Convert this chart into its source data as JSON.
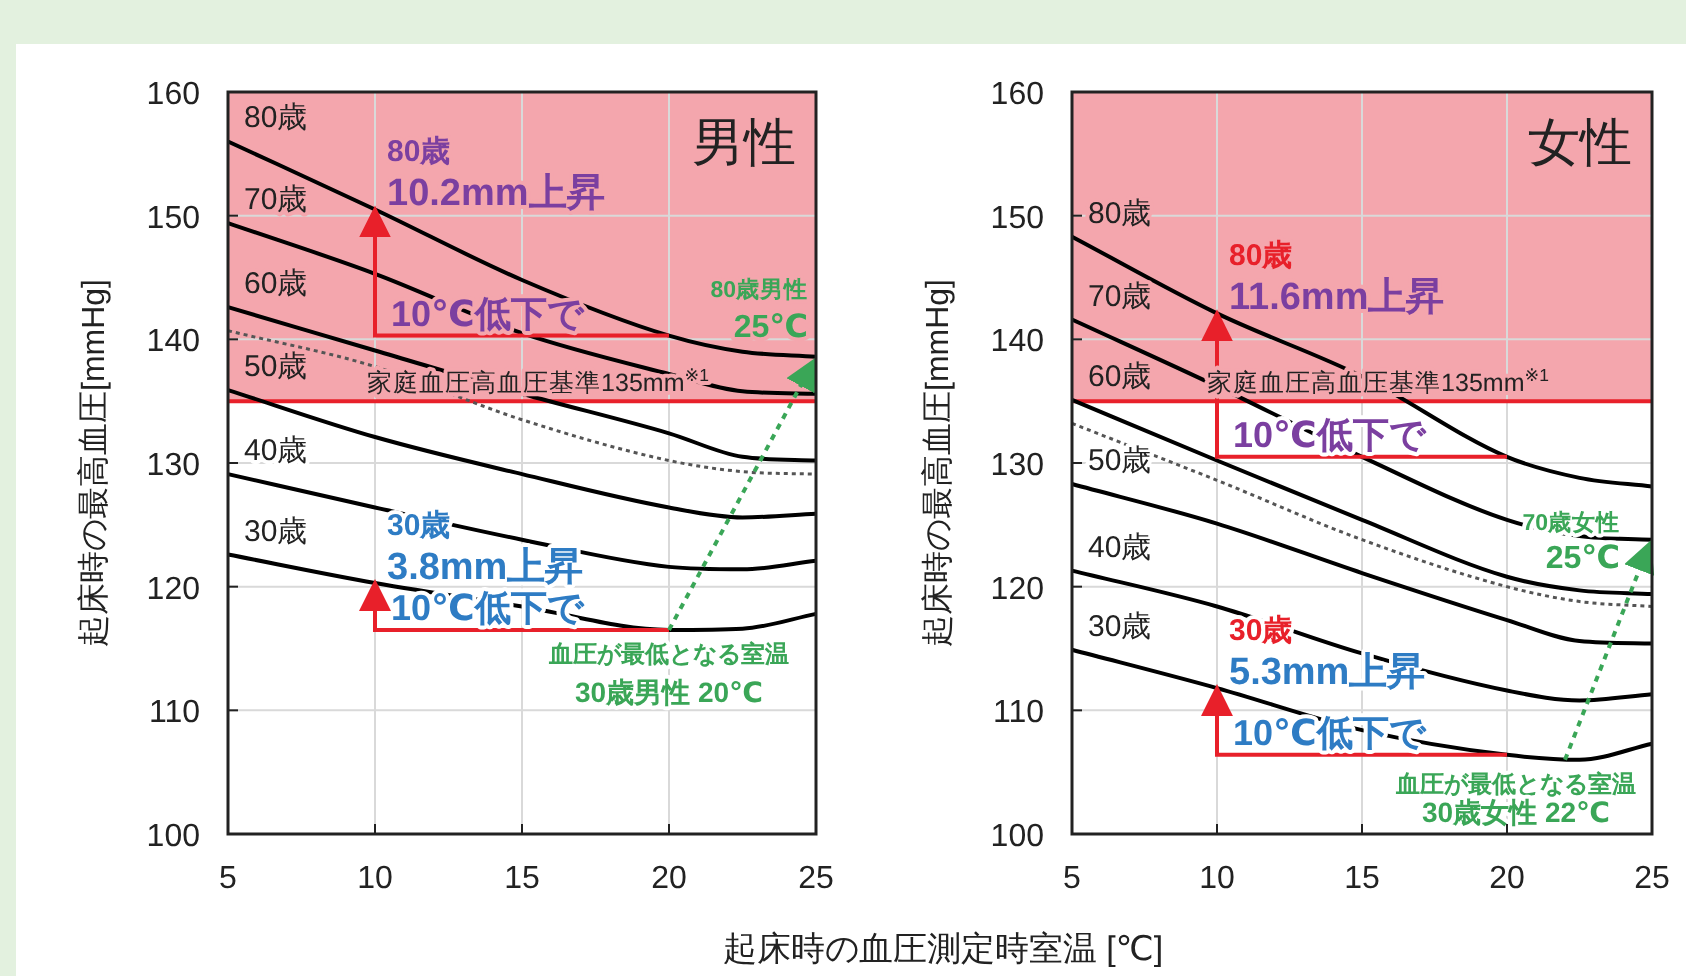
{
  "chart_data": [
    {
      "type": "line",
      "title": "男性",
      "xlabel": "起床時の血圧測定時室温 [℃]",
      "ylabel": "起床時の最高血圧[mmHg]",
      "x": [
        5,
        10,
        15,
        20,
        22.5,
        25
      ],
      "series": [
        {
          "name": "80歳",
          "color": "#000000",
          "values": [
            156.0,
            150.5,
            144.8,
            140.3,
            139.0,
            138.6
          ]
        },
        {
          "name": "70歳",
          "color": "#000000",
          "values": [
            149.4,
            145.3,
            140.5,
            137.2,
            135.8,
            135.6
          ]
        },
        {
          "name": "60歳",
          "color": "#000000",
          "values": [
            142.6,
            139.1,
            135.6,
            132.4,
            130.5,
            130.2
          ]
        },
        {
          "color": "#555555",
          "line_style": "dotted",
          "values": [
            140.7,
            137.8,
            133.5,
            130.2,
            129.3,
            129.1
          ]
        },
        {
          "name": "50歳",
          "color": "#000000",
          "values": [
            135.9,
            132.1,
            129.1,
            126.4,
            125.6,
            125.9
          ]
        },
        {
          "name": "40歳",
          "color": "#000000",
          "values": [
            129.1,
            126.4,
            123.8,
            121.6,
            121.4,
            122.1
          ]
        },
        {
          "name": "30歳",
          "color": "#000000",
          "values": [
            122.6,
            120.3,
            118.4,
            116.5,
            116.6,
            117.8
          ]
        }
      ],
      "xlim": [
        5,
        25
      ],
      "ylim": [
        100,
        160
      ],
      "xticks": [
        5,
        10,
        15,
        20,
        25
      ],
      "yticks": [
        100,
        110,
        120,
        130,
        140,
        150,
        160
      ],
      "grid": true,
      "line_style": "solid",
      "marker": "none",
      "bands": [
        {
          "axis": "y",
          "from": 135,
          "to": 160,
          "color": "#f4a6ad"
        }
      ],
      "ref_lines": [
        {
          "axis": "y",
          "value": 135,
          "label": "家庭血圧高血圧基準135mm$^{※1}$",
          "color": "#e8202a"
        }
      ],
      "annotations": [
        {
          "text": "80歳\n10.2mm上昇",
          "x": 10,
          "y": 150.5
        },
        {
          "text": "10℃低下で",
          "x": 20,
          "y": 140.3
        },
        {
          "text": "30歳\n3.8mm上昇",
          "x": 10,
          "y": 120.3
        },
        {
          "text": "10℃低下で",
          "x": 20,
          "y": 116.5
        },
        {
          "text": "血圧が最低となる室温\n30歳男性 20℃",
          "x": 20,
          "y": 116.5
        },
        {
          "text": "80歳男性\n25℃",
          "x": 25,
          "y": 138.6
        }
      ]
    },
    {
      "type": "line",
      "title": "女性",
      "ylabel": "起床時の最高血圧[mmHg]",
      "x": [
        5,
        10,
        15,
        20,
        22.5,
        25
      ],
      "series": [
        {
          "name": "80歳",
          "color": "#000000",
          "values": [
            148.3,
            142.1,
            137.0,
            130.5,
            128.8,
            128.1
          ]
        },
        {
          "name": "70歳",
          "color": "#000000",
          "values": [
            141.6,
            136.2,
            130.5,
            125.4,
            124.1,
            123.8
          ]
        },
        {
          "name": "60歳",
          "color": "#000000",
          "values": [
            135.1,
            130.2,
            125.4,
            120.8,
            119.7,
            119.4
          ]
        },
        {
          "color": "#555555",
          "line_style": "dotted",
          "values": [
            133.2,
            128.6,
            123.8,
            120.0,
            118.8,
            118.4
          ]
        },
        {
          "name": "50歳",
          "color": "#000000",
          "values": [
            128.3,
            125.1,
            121.1,
            117.3,
            115.6,
            115.4
          ]
        },
        {
          "name": "40歳",
          "color": "#000000",
          "values": [
            121.3,
            118.4,
            114.6,
            111.6,
            110.8,
            111.3
          ]
        },
        {
          "name": "30歳",
          "color": "#000000",
          "values": [
            114.9,
            111.8,
            108.4,
            106.4,
            106.0,
            107.3
          ]
        }
      ],
      "xlim": [
        5,
        25
      ],
      "ylim": [
        100,
        160
      ],
      "xticks": [
        5,
        10,
        15,
        20,
        25
      ],
      "yticks": [
        100,
        110,
        120,
        130,
        140,
        150,
        160
      ],
      "grid": true,
      "line_style": "solid",
      "marker": "none",
      "bands": [
        {
          "axis": "y",
          "from": 135,
          "to": 160,
          "color": "#f4a6ad"
        }
      ],
      "ref_lines": [
        {
          "axis": "y",
          "value": 135,
          "label": "家庭血圧高血圧基準135mm$^{※1}$",
          "color": "#e8202a"
        }
      ],
      "annotations": [
        {
          "text": "80歳\n11.6mm上昇",
          "x": 10,
          "y": 142.1
        },
        {
          "text": "10℃低下で",
          "x": 20,
          "y": 130.5
        },
        {
          "text": "30歳\n5.3mm上昇",
          "x": 10,
          "y": 111.8
        },
        {
          "text": "10℃低下で",
          "x": 20,
          "y": 106.4
        },
        {
          "text": "血圧が最低となる室温\n30歳女性 22℃",
          "x": 22,
          "y": 106.0
        },
        {
          "text": "70歳女性\n25℃",
          "x": 25,
          "y": 123.8
        }
      ]
    }
  ]
}
